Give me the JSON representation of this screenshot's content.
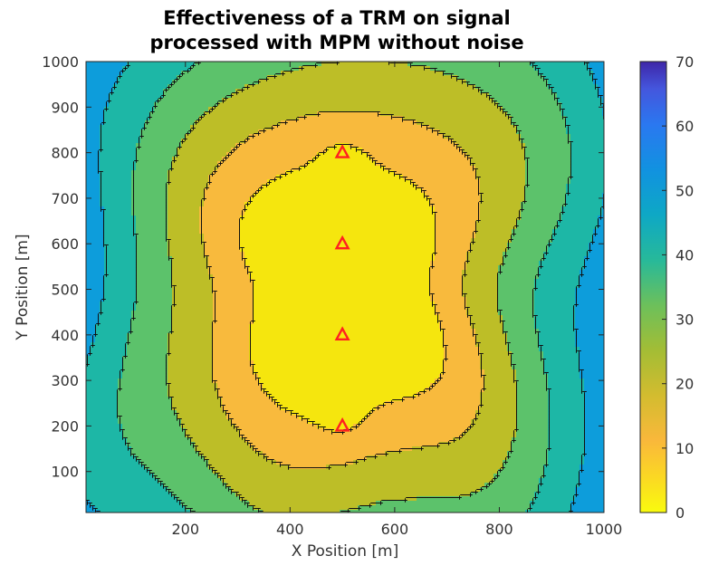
{
  "chart_data": {
    "type": "contour",
    "title": [
      "Effectiveness of a TRM on signal",
      "processed with MPM without noise"
    ],
    "xlabel": "X Position [m]",
    "ylabel": "Y Position [m]",
    "xlim": [
      10,
      1000
    ],
    "ylim": [
      10,
      1000
    ],
    "xticks": [
      200,
      400,
      600,
      800,
      1000
    ],
    "yticks": [
      100,
      200,
      300,
      400,
      500,
      600,
      700,
      800,
      900,
      1000
    ],
    "colorbar": {
      "ticks": [
        0,
        10,
        20,
        30,
        40,
        50,
        60,
        70
      ],
      "lim": [
        0,
        70
      ],
      "colormap": "parula"
    },
    "contour_levels": [
      5,
      15,
      25,
      35,
      45,
      55,
      65
    ],
    "level_colors": [
      "#f5e60e",
      "#f8ba3d",
      "#bdbe27",
      "#5cc26b",
      "#1db7a6",
      "#0d9ddb",
      "#2b6de8",
      "#4139c4"
    ],
    "markers": {
      "symbol": "triangle",
      "color": "#ff2020",
      "points": [
        {
          "x": 500,
          "y": 800
        },
        {
          "x": 500,
          "y": 600
        },
        {
          "x": 500,
          "y": 400
        },
        {
          "x": 500,
          "y": 200
        }
      ]
    }
  }
}
